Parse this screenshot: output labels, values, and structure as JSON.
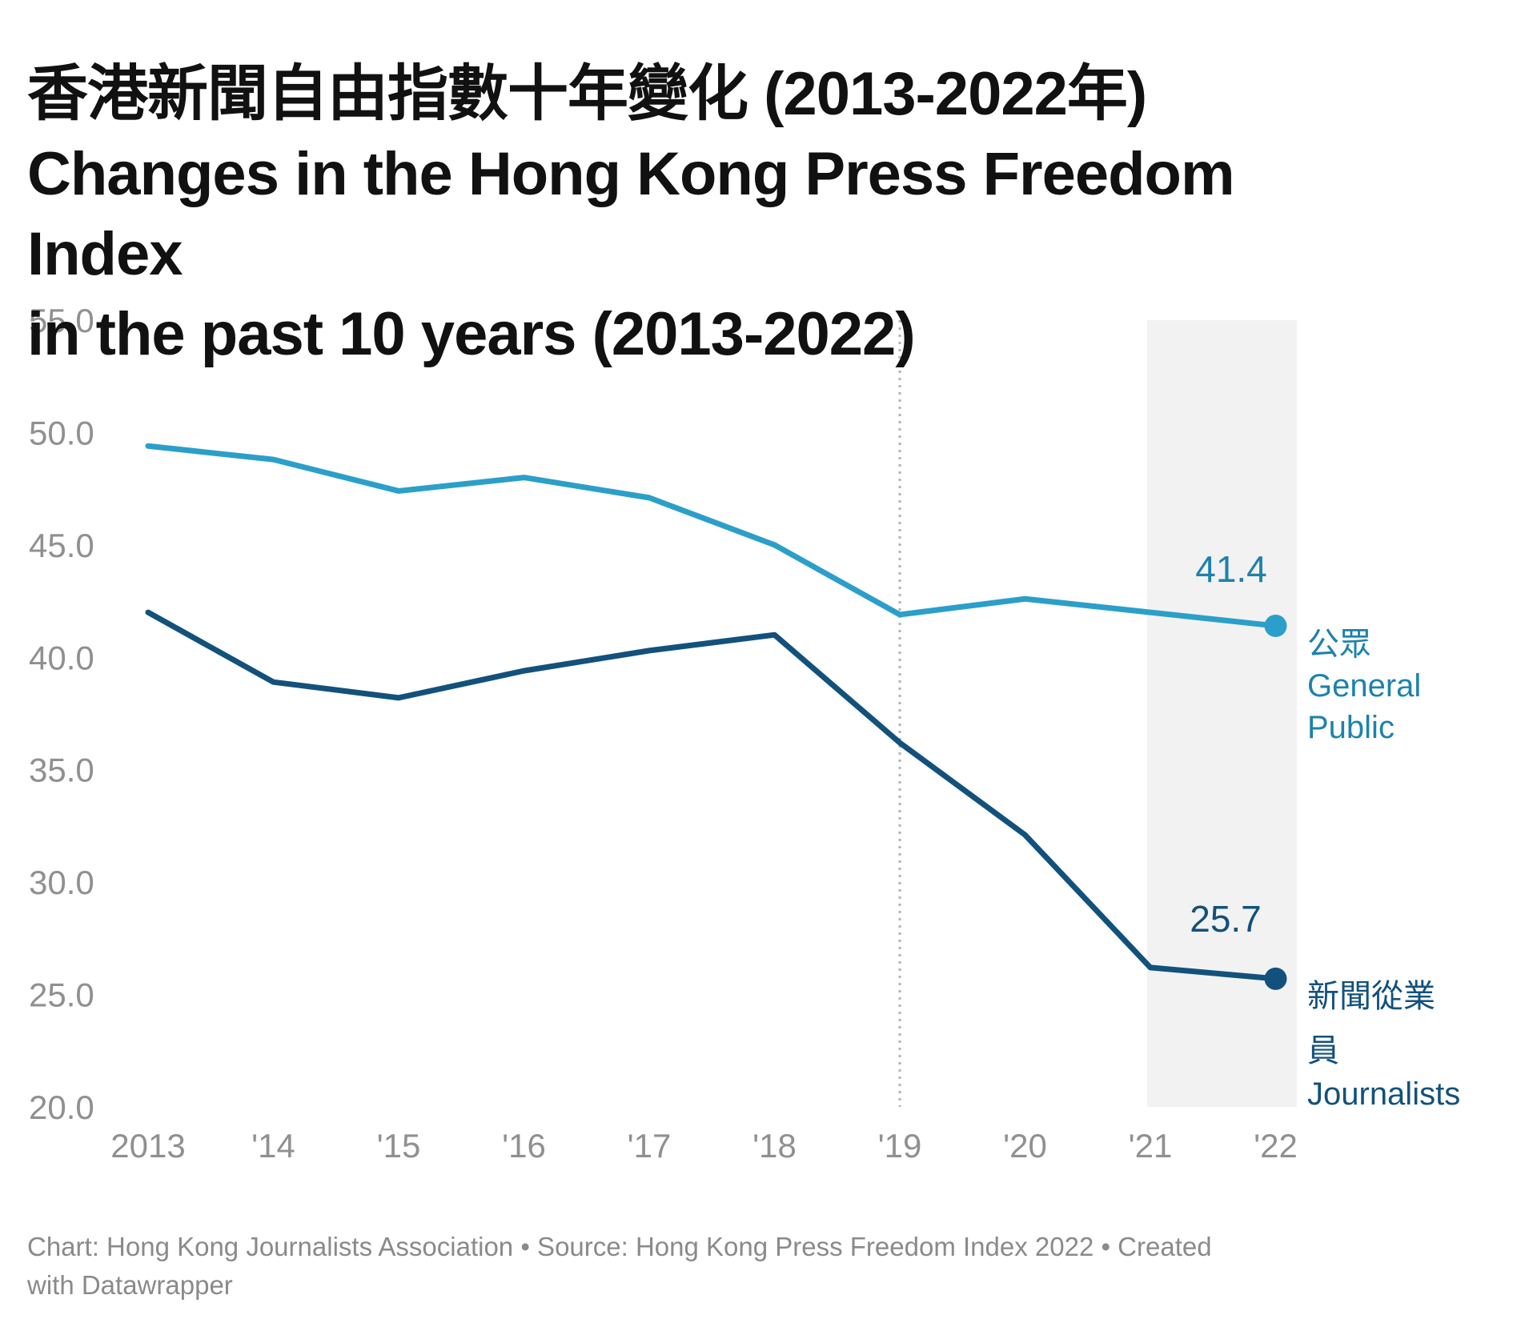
{
  "header": {
    "title_zh": "香港新聞自由指數十年變化 (2013-2022年)",
    "title_en_line1": "Changes in the Hong Kong Press Freedom Index",
    "title_en_line2": "in the past 10 years (2013-2022)"
  },
  "footer": {
    "line1": "Chart: Hong Kong Journalists Association • Source: Hong Kong Press Freedom Index 2022 • Created",
    "line2": "with Datawrapper"
  },
  "chart_data": {
    "type": "line",
    "title": "香港新聞自由指數十年變化 (2013-2022年) Changes in the Hong Kong Press Freedom Index in the past 10 years (2013-2022)",
    "x": [
      2013,
      2014,
      2015,
      2016,
      2017,
      2018,
      2019,
      2020,
      2021,
      2022
    ],
    "x_tick_labels": [
      "2013",
      "'14",
      "'15",
      "'16",
      "'17",
      "'18",
      "'19",
      "'20",
      "'21",
      "'22"
    ],
    "y_ticks": [
      55,
      50,
      45,
      40,
      35,
      30,
      25,
      20
    ],
    "y_tick_labels": [
      "55.0",
      "50.0",
      "45.0",
      "40.0",
      "35.0",
      "30.0",
      "25.0",
      "20.0"
    ],
    "ylim": [
      20,
      55
    ],
    "grid": "none",
    "legend_position": "right-of-line-ends",
    "vline_year": 2019,
    "highlight_band_years": [
      2021,
      2022
    ],
    "colors": {
      "band": "#f2f2f2",
      "vline": "#b3b3b3",
      "tick_text": "#909090"
    },
    "series": [
      {
        "name_zh": "公眾",
        "name_en": "General Public",
        "label_lines": [
          "公眾",
          "General",
          "Public"
        ],
        "color": "#2B9FC9",
        "label_color": "#1D82AC",
        "end_label": "41.4",
        "values": [
          49.4,
          48.8,
          47.4,
          48.0,
          47.1,
          45.0,
          41.9,
          42.6,
          42.0,
          41.4
        ]
      },
      {
        "name_zh": "新聞從業員",
        "name_en": "Journalists",
        "label_lines": [
          "新聞從業",
          "員",
          "Journalists"
        ],
        "color": "#12517C",
        "label_color": "#12517C",
        "end_label": "25.7",
        "values": [
          42.0,
          38.9,
          38.2,
          39.4,
          40.3,
          41.0,
          36.2,
          32.1,
          26.2,
          25.7
        ]
      }
    ]
  }
}
